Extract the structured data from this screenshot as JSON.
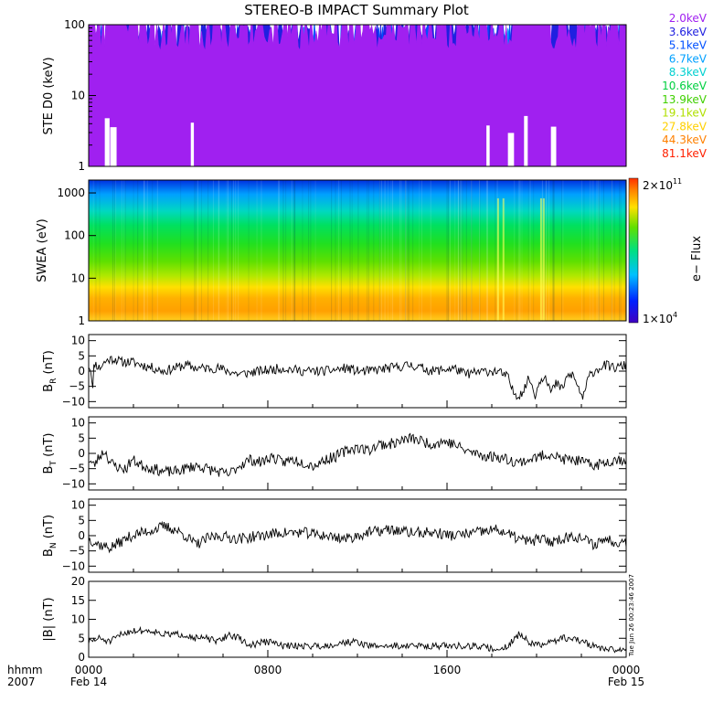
{
  "chart_data": {
    "type": "line",
    "title": "STEREO-B IMPACT Summary Plot",
    "x_time_axis": {
      "label_lines": [
        "hhmm",
        "2007"
      ],
      "ticks": [
        "0000",
        "0800",
        "1600",
        "0000"
      ],
      "dates": [
        "Feb 14",
        "Feb 15"
      ]
    },
    "timestamp_note": "Tue Jun 26 00:23:46 2007",
    "panels": [
      {
        "id": "ste",
        "type": "line",
        "ylabel": "STE D0 (keV)",
        "yscale": "log",
        "ylim": [
          1,
          100
        ],
        "yticks": [
          "1",
          "10",
          "100"
        ],
        "legend_position": "right",
        "series": [
          {
            "name": "2.0keV",
            "color": "#a020f0",
            "level": 95
          },
          {
            "name": "3.6keV",
            "color": "#2020e0",
            "level": 78
          },
          {
            "name": "5.1keV",
            "color": "#0050ff",
            "level": 58
          },
          {
            "name": "6.7keV",
            "color": "#00a0ff",
            "level": 42
          },
          {
            "name": "8.3keV",
            "color": "#00d0d0",
            "level": 30
          },
          {
            "name": "10.6keV",
            "color": "#00d040",
            "level": 20
          },
          {
            "name": "13.9keV",
            "color": "#40d000",
            "level": 14
          },
          {
            "name": "19.1keV",
            "color": "#b0e000",
            "level": 9
          },
          {
            "name": "27.8keV",
            "color": "#ffd000",
            "level": 6
          },
          {
            "name": "44.3keV",
            "color": "#ff8000",
            "level": 4
          },
          {
            "name": "81.1keV",
            "color": "#ff2000",
            "level": 2.5
          }
        ]
      },
      {
        "id": "swea",
        "type": "heatmap",
        "ylabel": "SWEA (eV)",
        "yscale": "log",
        "ylim": [
          1,
          2000
        ],
        "yticks": [
          "1",
          "10",
          "100",
          "1000"
        ],
        "colorbar": {
          "label": "e− Flux",
          "max_label": "2×10",
          "max_exp": "11",
          "min_label": "1×10",
          "min_exp": "4"
        }
      },
      {
        "id": "br",
        "type": "line",
        "ylabel_main": "B",
        "ylabel_sub": "R",
        "ylabel_unit": " (nT)",
        "ylim": [
          -12,
          12
        ],
        "yticks": [
          {
            "v": 10,
            "t": "10"
          },
          {
            "v": 5,
            "t": "5"
          },
          {
            "v": 0,
            "t": "0"
          },
          {
            "v": -5,
            "t": "−5"
          },
          {
            "v": -10,
            "t": "−10"
          }
        ],
        "keys": [
          [
            0,
            2
          ],
          [
            0.3,
            1
          ],
          [
            0.6,
            -2
          ],
          [
            0.8,
            -7
          ],
          [
            1,
            3
          ],
          [
            2,
            1
          ],
          [
            3,
            3
          ],
          [
            4,
            4
          ],
          [
            5,
            4
          ],
          [
            6,
            3
          ],
          [
            8,
            3
          ],
          [
            10,
            2
          ],
          [
            12,
            1
          ],
          [
            14,
            0
          ],
          [
            16,
            1
          ],
          [
            18,
            2
          ],
          [
            20,
            1
          ],
          [
            24,
            1
          ],
          [
            28,
            -1
          ],
          [
            32,
            0
          ],
          [
            36,
            1
          ],
          [
            40,
            0
          ],
          [
            44,
            0
          ],
          [
            48,
            1
          ],
          [
            50,
            0
          ],
          [
            52,
            0
          ],
          [
            56,
            1
          ],
          [
            60,
            2
          ],
          [
            62,
            1
          ],
          [
            64,
            0
          ],
          [
            68,
            1
          ],
          [
            70,
            -1
          ],
          [
            74,
            0
          ],
          [
            76,
            0
          ],
          [
            78,
            -2
          ],
          [
            79,
            -7
          ],
          [
            80,
            -8
          ],
          [
            81,
            -6
          ],
          [
            82,
            -2
          ],
          [
            83,
            -8
          ],
          [
            84,
            -3
          ],
          [
            85,
            -1
          ],
          [
            86,
            -7
          ],
          [
            87,
            -4
          ],
          [
            88,
            -6
          ],
          [
            89,
            -2
          ],
          [
            90,
            -1
          ],
          [
            91,
            -5
          ],
          [
            92,
            -9
          ],
          [
            93,
            -2
          ],
          [
            94,
            0
          ],
          [
            96,
            2
          ],
          [
            98,
            1
          ],
          [
            100,
            2
          ]
        ],
        "noise": 1.6,
        "seed": 11
      },
      {
        "id": "bt",
        "type": "line",
        "ylabel_main": "B",
        "ylabel_sub": "T",
        "ylabel_unit": " (nT)",
        "ylim": [
          -12,
          12
        ],
        "yticks": [
          {
            "v": 10,
            "t": "10"
          },
          {
            "v": 5,
            "t": "5"
          },
          {
            "v": 0,
            "t": "0"
          },
          {
            "v": -5,
            "t": "−5"
          },
          {
            "v": -10,
            "t": "−10"
          }
        ],
        "keys": [
          [
            0,
            -2
          ],
          [
            1,
            -4
          ],
          [
            2,
            -1
          ],
          [
            3,
            1
          ],
          [
            4,
            -3
          ],
          [
            5,
            -4
          ],
          [
            6,
            -5
          ],
          [
            7,
            -5
          ],
          [
            8,
            -2
          ],
          [
            10,
            -4
          ],
          [
            12,
            -5
          ],
          [
            14,
            -6
          ],
          [
            16,
            -6
          ],
          [
            18,
            -5
          ],
          [
            20,
            -4
          ],
          [
            22,
            -5
          ],
          [
            24,
            -6
          ],
          [
            26,
            -7
          ],
          [
            28,
            -4
          ],
          [
            30,
            -2
          ],
          [
            32,
            -3
          ],
          [
            34,
            -1
          ],
          [
            36,
            -3
          ],
          [
            38,
            -2
          ],
          [
            40,
            -3
          ],
          [
            42,
            -4
          ],
          [
            44,
            -2
          ],
          [
            46,
            -1
          ],
          [
            48,
            1
          ],
          [
            50,
            2
          ],
          [
            52,
            1
          ],
          [
            54,
            3
          ],
          [
            56,
            3
          ],
          [
            58,
            4
          ],
          [
            60,
            5
          ],
          [
            62,
            4
          ],
          [
            64,
            3
          ],
          [
            66,
            4
          ],
          [
            68,
            3
          ],
          [
            70,
            1
          ],
          [
            72,
            0
          ],
          [
            74,
            -1
          ],
          [
            76,
            -1
          ],
          [
            78,
            -2
          ],
          [
            80,
            -3
          ],
          [
            82,
            -2
          ],
          [
            84,
            -1
          ],
          [
            86,
            0
          ],
          [
            88,
            -2
          ],
          [
            90,
            -2
          ],
          [
            92,
            -3
          ],
          [
            94,
            -4
          ],
          [
            96,
            -3
          ],
          [
            98,
            -2
          ],
          [
            100,
            -2
          ]
        ],
        "noise": 1.8,
        "seed": 23
      },
      {
        "id": "bn",
        "type": "line",
        "ylabel_main": "B",
        "ylabel_sub": "N",
        "ylabel_unit": " (nT)",
        "ylim": [
          -12,
          12
        ],
        "yticks": [
          {
            "v": 10,
            "t": "10"
          },
          {
            "v": 5,
            "t": "5"
          },
          {
            "v": 0,
            "t": "0"
          },
          {
            "v": -5,
            "t": "−5"
          },
          {
            "v": -10,
            "t": "−10"
          }
        ],
        "keys": [
          [
            0,
            -1
          ],
          [
            2,
            -3
          ],
          [
            4,
            -4
          ],
          [
            6,
            -2
          ],
          [
            8,
            0
          ],
          [
            10,
            1
          ],
          [
            12,
            2
          ],
          [
            14,
            3
          ],
          [
            16,
            2
          ],
          [
            18,
            0
          ],
          [
            20,
            -3
          ],
          [
            22,
            -1
          ],
          [
            24,
            0
          ],
          [
            28,
            -1
          ],
          [
            32,
            0
          ],
          [
            36,
            1
          ],
          [
            40,
            1
          ],
          [
            44,
            0
          ],
          [
            48,
            -1
          ],
          [
            52,
            1
          ],
          [
            56,
            2
          ],
          [
            60,
            1
          ],
          [
            64,
            1
          ],
          [
            68,
            0
          ],
          [
            72,
            1
          ],
          [
            76,
            2
          ],
          [
            80,
            -1
          ],
          [
            82,
            -2
          ],
          [
            84,
            -1
          ],
          [
            86,
            -2
          ],
          [
            88,
            -1
          ],
          [
            90,
            0
          ],
          [
            92,
            -1
          ],
          [
            94,
            -3
          ],
          [
            96,
            -1
          ],
          [
            98,
            -2
          ],
          [
            100,
            -2
          ]
        ],
        "noise": 1.8,
        "seed": 37
      },
      {
        "id": "bmag",
        "type": "line",
        "ylabel_main": "|B|",
        "ylabel_sub": "",
        "ylabel_unit": " (nT)",
        "ylim": [
          0,
          20
        ],
        "yticks": [
          {
            "v": 20,
            "t": "20"
          },
          {
            "v": 15,
            "t": "15"
          },
          {
            "v": 10,
            "t": "10"
          },
          {
            "v": 5,
            "t": "5"
          },
          {
            "v": 0,
            "t": "0"
          }
        ],
        "keys": [
          [
            0,
            4
          ],
          [
            2,
            5
          ],
          [
            4,
            4
          ],
          [
            6,
            6
          ],
          [
            8,
            7
          ],
          [
            10,
            7
          ],
          [
            12,
            7
          ],
          [
            14,
            6
          ],
          [
            16,
            6
          ],
          [
            18,
            6
          ],
          [
            20,
            5
          ],
          [
            22,
            5
          ],
          [
            24,
            4
          ],
          [
            26,
            6
          ],
          [
            28,
            5
          ],
          [
            30,
            3
          ],
          [
            32,
            4
          ],
          [
            34,
            4
          ],
          [
            36,
            3
          ],
          [
            40,
            3
          ],
          [
            44,
            3
          ],
          [
            48,
            4
          ],
          [
            50,
            4
          ],
          [
            52,
            3
          ],
          [
            54,
            3
          ],
          [
            56,
            3
          ],
          [
            60,
            3
          ],
          [
            64,
            3
          ],
          [
            68,
            3
          ],
          [
            72,
            3
          ],
          [
            76,
            2
          ],
          [
            78,
            3
          ],
          [
            80,
            6
          ],
          [
            82,
            4
          ],
          [
            84,
            3
          ],
          [
            86,
            4
          ],
          [
            88,
            5
          ],
          [
            90,
            5
          ],
          [
            92,
            4
          ],
          [
            94,
            3
          ],
          [
            96,
            2
          ],
          [
            98,
            2
          ],
          [
            100,
            2
          ]
        ],
        "noise": 0.9,
        "seed": 51
      }
    ]
  }
}
